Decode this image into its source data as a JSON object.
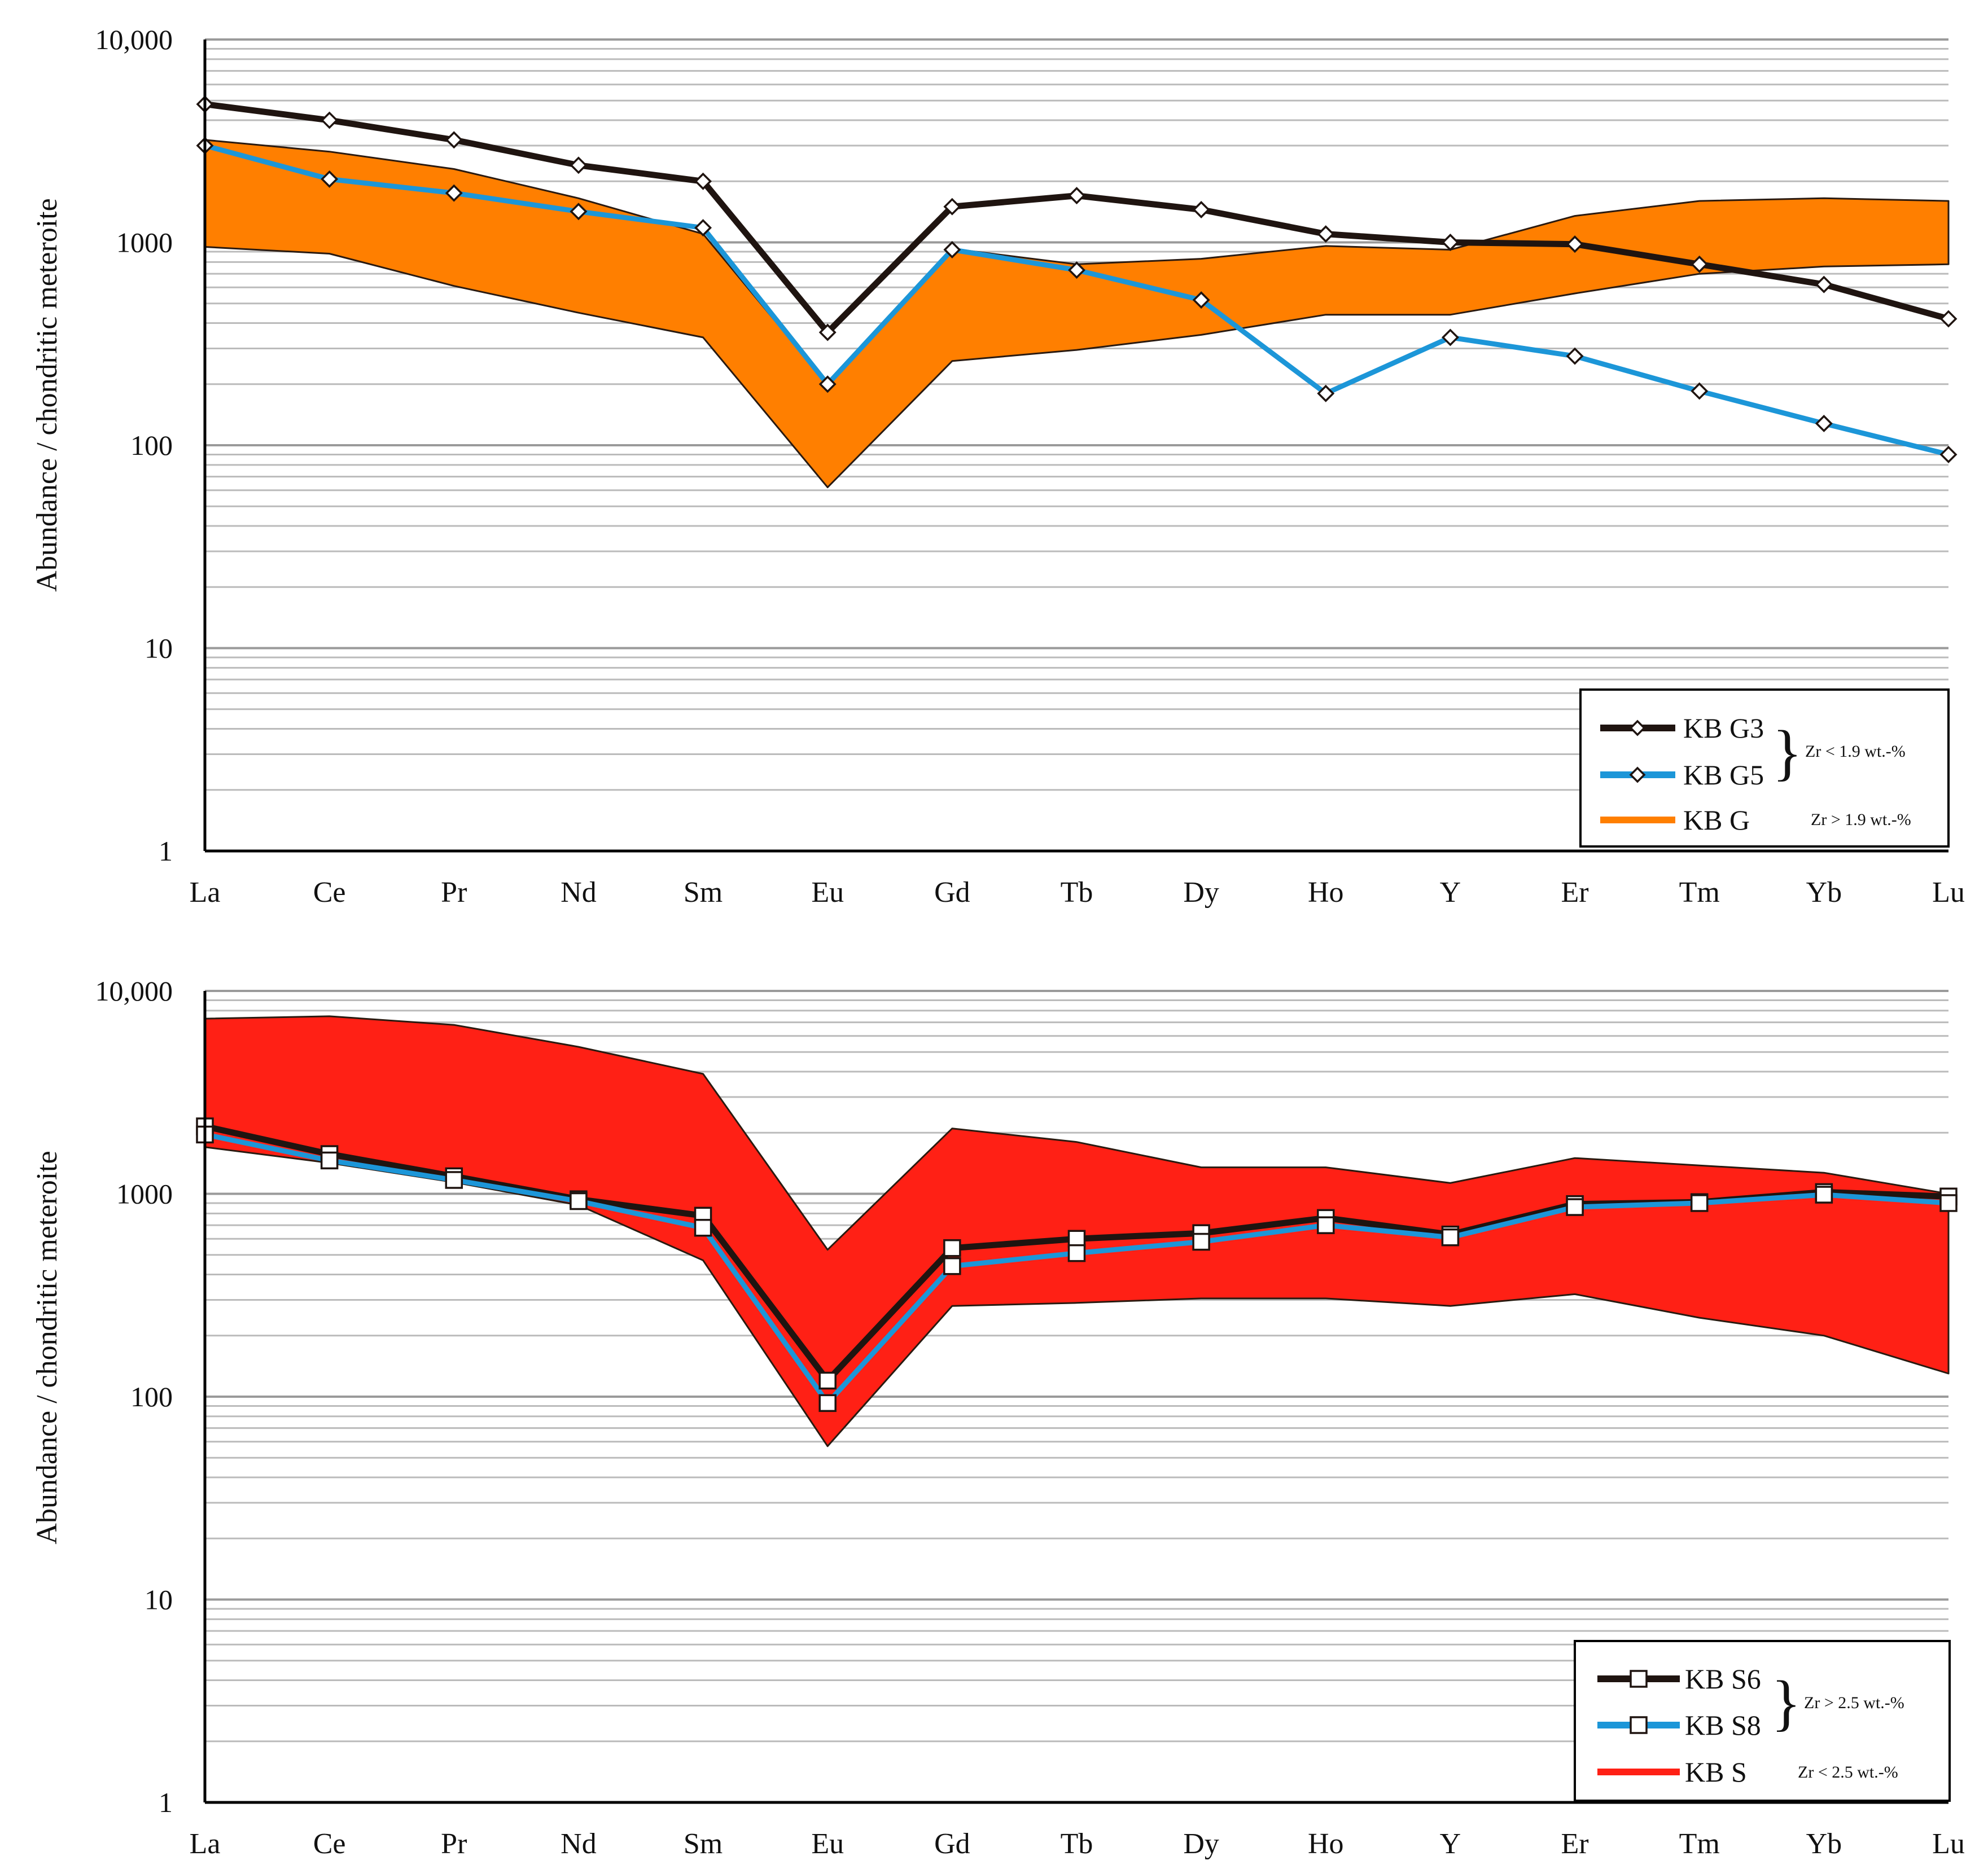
{
  "colors": {
    "kb_g_band": "#FF7F00",
    "kb_s_band": "#FF2015",
    "black_series": "#1F1410",
    "blue_series": "#1C96D8",
    "grid": "#BBBBBB",
    "axis": "#000000"
  },
  "chart_data": [
    {
      "type": "line",
      "scale": "log",
      "ylabel": "Abundance / chondritic meteroite",
      "ylim": [
        1,
        10000
      ],
      "y_ticks": [
        "1",
        "10",
        "100",
        "1000",
        "10,000"
      ],
      "y_tick_values": [
        1,
        10,
        100,
        1000,
        10000
      ],
      "categories": [
        "La",
        "Ce",
        "Pr",
        "Nd",
        "Sm",
        "Eu",
        "Gd",
        "Tb",
        "Dy",
        "Ho",
        "Y",
        "Er",
        "Tm",
        "Yb",
        "Lu"
      ],
      "band": {
        "name": "KB G",
        "note": "Zr > 1.9 wt.-%",
        "color": "#FF7F00",
        "upper": [
          3200,
          2800,
          2300,
          1650,
          1100,
          200,
          930,
          780,
          830,
          960,
          920,
          1350,
          1600,
          1650,
          1600
        ],
        "lower": [
          950,
          880,
          610,
          450,
          340,
          62,
          260,
          295,
          350,
          440,
          440,
          560,
          700,
          760,
          780
        ]
      },
      "series": [
        {
          "name": "KB G3",
          "color": "#1F1410",
          "marker": "diamond",
          "values": [
            4800,
            4000,
            3200,
            2400,
            2000,
            360,
            1500,
            1700,
            1450,
            1100,
            1000,
            980,
            780,
            620,
            420
          ]
        },
        {
          "name": "KB G5",
          "color": "#1C96D8",
          "marker": "diamond",
          "values": [
            3000,
            2050,
            1750,
            1420,
            1180,
            200,
            920,
            730,
            520,
            180,
            340,
            275,
            185,
            128,
            90
          ]
        }
      ],
      "legend": {
        "entries": [
          "KB G3",
          "KB G5",
          "KB G"
        ],
        "group_note": "Zr < 1.9 wt.-%",
        "band_note": "Zr > 1.9 wt.-%",
        "position": "bottom-right"
      }
    },
    {
      "type": "line",
      "scale": "log",
      "ylabel": "Abundance / chondritic meteroite",
      "ylim": [
        1,
        10000
      ],
      "y_ticks": [
        "1",
        "10",
        "100",
        "1000",
        "10,000"
      ],
      "y_tick_values": [
        1,
        10,
        100,
        1000,
        10000
      ],
      "categories": [
        "La",
        "Ce",
        "Pr",
        "Nd",
        "Sm",
        "Eu",
        "Gd",
        "Tb",
        "Dy",
        "Ho",
        "Y",
        "Er",
        "Tm",
        "Yb",
        "Lu"
      ],
      "band": {
        "name": "KB S",
        "note": "Zr < 2.5 wt.-%",
        "color": "#FF2015",
        "upper": [
          7300,
          7500,
          6800,
          5300,
          3900,
          530,
          2100,
          1800,
          1350,
          1350,
          1130,
          1500,
          1380,
          1270,
          1000
        ],
        "lower": [
          1700,
          1420,
          1140,
          880,
          470,
          57,
          280,
          290,
          305,
          305,
          280,
          320,
          245,
          200,
          130
        ]
      },
      "series": [
        {
          "name": "KB S6",
          "color": "#1F1410",
          "marker": "square",
          "values": [
            2150,
            1570,
            1220,
            940,
            780,
            120,
            540,
            600,
            640,
            760,
            630,
            890,
            910,
            1020,
            970
          ]
        },
        {
          "name": "KB S8",
          "color": "#1C96D8",
          "marker": "square",
          "values": [
            1960,
            1460,
            1170,
            920,
            680,
            93,
            440,
            510,
            580,
            700,
            610,
            860,
            900,
            990,
            900
          ]
        }
      ],
      "legend": {
        "entries": [
          "KB S6",
          "KB S8",
          "KB S"
        ],
        "group_note": "Zr > 2.5 wt.-%",
        "band_note": "Zr < 2.5 wt.-%",
        "position": "bottom-right"
      }
    }
  ]
}
